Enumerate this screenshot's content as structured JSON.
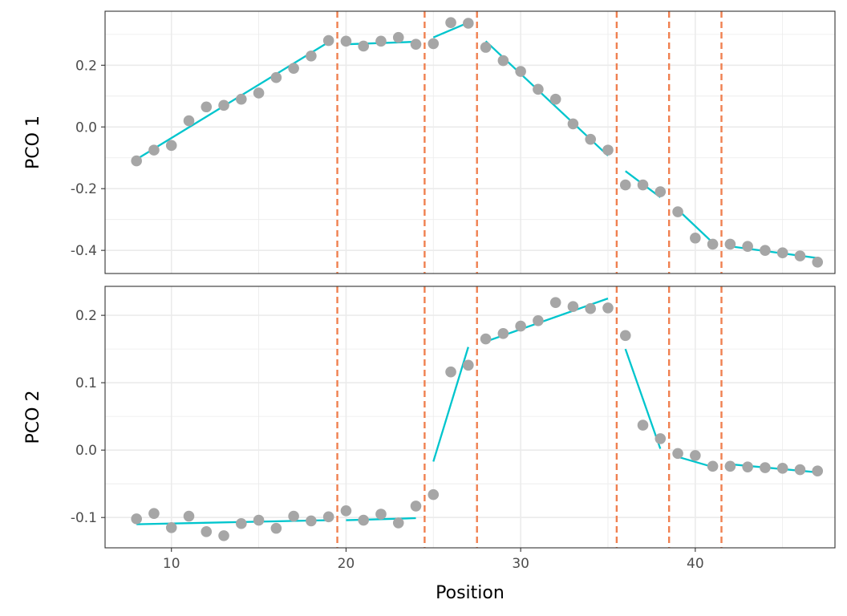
{
  "chart_data": {
    "type": "scatter",
    "xlabel": "Position",
    "xlim": [
      6.2,
      48.0
    ],
    "x_ticks": [
      10,
      20,
      30,
      40
    ],
    "breakpoints": [
      19.5,
      24.5,
      27.5,
      35.5,
      38.5,
      41.5
    ],
    "colors": {
      "points": "#a6a6a6",
      "fit_lines": "#00c5cd",
      "breakpoints": "#f08050"
    },
    "grid": true,
    "panels": [
      {
        "ylabel": "PCO 1",
        "ylim": [
          -0.475,
          0.375
        ],
        "y_ticks": [
          -0.4,
          -0.2,
          0.0,
          0.2
        ],
        "y_tick_labels": [
          "-0.4",
          "-0.2",
          "0.0",
          "0.2"
        ],
        "points": [
          [
            8,
            -0.11
          ],
          [
            9,
            -0.075
          ],
          [
            10,
            -0.06
          ],
          [
            11,
            0.02
          ],
          [
            12,
            0.065
          ],
          [
            13,
            0.07
          ],
          [
            14,
            0.09
          ],
          [
            15,
            0.11
          ],
          [
            16,
            0.16
          ],
          [
            17,
            0.19
          ],
          [
            18,
            0.23
          ],
          [
            19,
            0.28
          ],
          [
            20,
            0.278
          ],
          [
            21,
            0.262
          ],
          [
            22,
            0.278
          ],
          [
            23,
            0.29
          ],
          [
            24,
            0.268
          ],
          [
            25,
            0.27
          ],
          [
            26,
            0.338
          ],
          [
            27,
            0.336
          ],
          [
            28,
            0.258
          ],
          [
            29,
            0.215
          ],
          [
            30,
            0.18
          ],
          [
            31,
            0.122
          ],
          [
            32,
            0.09
          ],
          [
            33,
            0.01
          ],
          [
            34,
            -0.04
          ],
          [
            35,
            -0.075
          ],
          [
            36,
            -0.188
          ],
          [
            37,
            -0.188
          ],
          [
            38,
            -0.21
          ],
          [
            39,
            -0.275
          ],
          [
            40,
            -0.36
          ],
          [
            41,
            -0.38
          ],
          [
            42,
            -0.38
          ],
          [
            43,
            -0.387
          ],
          [
            44,
            -0.4
          ],
          [
            45,
            -0.408
          ],
          [
            46,
            -0.418
          ],
          [
            47,
            -0.438
          ]
        ],
        "fit_segments": [
          [
            [
              8,
              -0.105
            ],
            [
              19,
              0.275
            ]
          ],
          [
            [
              20,
              0.268
            ],
            [
              24,
              0.276
            ]
          ],
          [
            [
              25,
              0.29
            ],
            [
              27,
              0.338
            ]
          ],
          [
            [
              28,
              0.278
            ],
            [
              35,
              -0.093
            ]
          ],
          [
            [
              36,
              -0.143
            ],
            [
              38,
              -0.228
            ]
          ],
          [
            [
              39,
              -0.268
            ],
            [
              41,
              -0.375
            ]
          ],
          [
            [
              42,
              -0.387
            ],
            [
              47,
              -0.425
            ]
          ]
        ]
      },
      {
        "ylabel": "PCO 2",
        "ylim": [
          -0.145,
          0.243
        ],
        "y_ticks": [
          -0.1,
          0.0,
          0.1,
          0.2
        ],
        "y_tick_labels": [
          "-0.1",
          "0.0",
          "0.1",
          "0.2"
        ],
        "points": [
          [
            8,
            -0.102
          ],
          [
            9,
            -0.094
          ],
          [
            10,
            -0.115
          ],
          [
            11,
            -0.098
          ],
          [
            12,
            -0.121
          ],
          [
            13,
            -0.127
          ],
          [
            14,
            -0.109
          ],
          [
            15,
            -0.104
          ],
          [
            16,
            -0.116
          ],
          [
            17,
            -0.098
          ],
          [
            18,
            -0.105
          ],
          [
            19,
            -0.099
          ],
          [
            20,
            -0.09
          ],
          [
            21,
            -0.104
          ],
          [
            22,
            -0.095
          ],
          [
            23,
            -0.108
          ],
          [
            24,
            -0.083
          ],
          [
            25,
            -0.066
          ],
          [
            26,
            0.116
          ],
          [
            27,
            0.126
          ],
          [
            28,
            0.165
          ],
          [
            29,
            0.173
          ],
          [
            30,
            0.184
          ],
          [
            31,
            0.192
          ],
          [
            32,
            0.219
          ],
          [
            33,
            0.213
          ],
          [
            34,
            0.21
          ],
          [
            35,
            0.211
          ],
          [
            36,
            0.17
          ],
          [
            37,
            0.037
          ],
          [
            38,
            0.017
          ],
          [
            39,
            -0.005
          ],
          [
            40,
            -0.008
          ],
          [
            41,
            -0.024
          ],
          [
            42,
            -0.024
          ],
          [
            43,
            -0.025
          ],
          [
            44,
            -0.026
          ],
          [
            45,
            -0.027
          ],
          [
            46,
            -0.029
          ],
          [
            47,
            -0.031
          ]
        ],
        "fit_segments": [
          [
            [
              8,
              -0.11
            ],
            [
              19,
              -0.104
            ]
          ],
          [
            [
              20,
              -0.104
            ],
            [
              24,
              -0.101
            ]
          ],
          [
            [
              25,
              -0.017
            ],
            [
              27,
              0.153
            ]
          ],
          [
            [
              28,
              0.161
            ],
            [
              35,
              0.225
            ]
          ],
          [
            [
              36,
              0.15
            ],
            [
              38,
              0.002
            ]
          ],
          [
            [
              39,
              -0.01
            ],
            [
              41,
              -0.025
            ]
          ],
          [
            [
              42,
              -0.021
            ],
            [
              47,
              -0.033
            ]
          ]
        ]
      }
    ]
  }
}
